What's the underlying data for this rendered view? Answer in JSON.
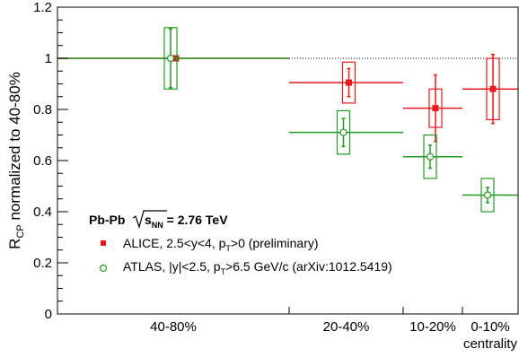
{
  "chart_data": {
    "type": "scatter",
    "title": "",
    "xlabel": "centrality",
    "ylabel_main": "R",
    "ylabel_sub": "CP",
    "ylabel_rest": " normalized to 40-80%",
    "ylim": [
      0,
      1.2
    ],
    "yticks": [
      "0",
      "0.2",
      "0.4",
      "0.6",
      "0.8",
      "1",
      "1.2"
    ],
    "categories": [
      "40-80%",
      "20-40%",
      "10-20%",
      "0-10%"
    ],
    "category_bins": [
      [
        40,
        80
      ],
      [
        20,
        40
      ],
      [
        10,
        20
      ],
      [
        0,
        10
      ]
    ],
    "reference_line": 1.0,
    "grid": false,
    "legend": {
      "placement": "bottom-left",
      "header_prefix": "Pb-Pb",
      "header_sqrt": "s",
      "header_sub": "NN",
      "header_value": " = 2.76 TeV",
      "entries": [
        {
          "parts": [
            "ALICE, 2.5<y<4, p",
            "T",
            ">0 (preliminary)"
          ],
          "color": "#e8181f",
          "marker": "filled-square"
        },
        {
          "parts": [
            "ATLAS, |y|<2.5, p",
            "T",
            ">6.5 GeV/c (arXiv:1012.5419)"
          ],
          "color": "#229b22",
          "marker": "open-circle"
        }
      ]
    },
    "series": [
      {
        "name": "ALICE",
        "color": "#e8181f",
        "marker": "filled-square",
        "points": [
          {
            "bin": [
              40,
              80
            ],
            "x": 60,
            "y": 1.0,
            "stat": 0.0,
            "sys": 0.0
          },
          {
            "bin": [
              20,
              40
            ],
            "x": 30,
            "y": 0.905,
            "stat": 0.055,
            "sys": 0.08
          },
          {
            "bin": [
              10,
              20
            ],
            "x": 15,
            "y": 0.805,
            "stat": 0.13,
            "sys": 0.075
          },
          {
            "bin": [
              0,
              10
            ],
            "x": 5,
            "y": 0.88,
            "stat": 0.135,
            "sys": 0.12
          }
        ]
      },
      {
        "name": "ATLAS",
        "color": "#229b22",
        "marker": "open-circle",
        "points": [
          {
            "bin": [
              40,
              80
            ],
            "x": 60,
            "y": 1.0,
            "stat": 0.115,
            "sys": 0.12
          },
          {
            "bin": [
              20,
              40
            ],
            "x": 30,
            "y": 0.71,
            "stat": 0.055,
            "sys": 0.085
          },
          {
            "bin": [
              10,
              20
            ],
            "x": 15,
            "y": 0.615,
            "stat": 0.045,
            "sys": 0.085
          },
          {
            "bin": [
              0,
              10
            ],
            "x": 5,
            "y": 0.465,
            "stat": 0.03,
            "sys": 0.065
          }
        ]
      }
    ]
  }
}
